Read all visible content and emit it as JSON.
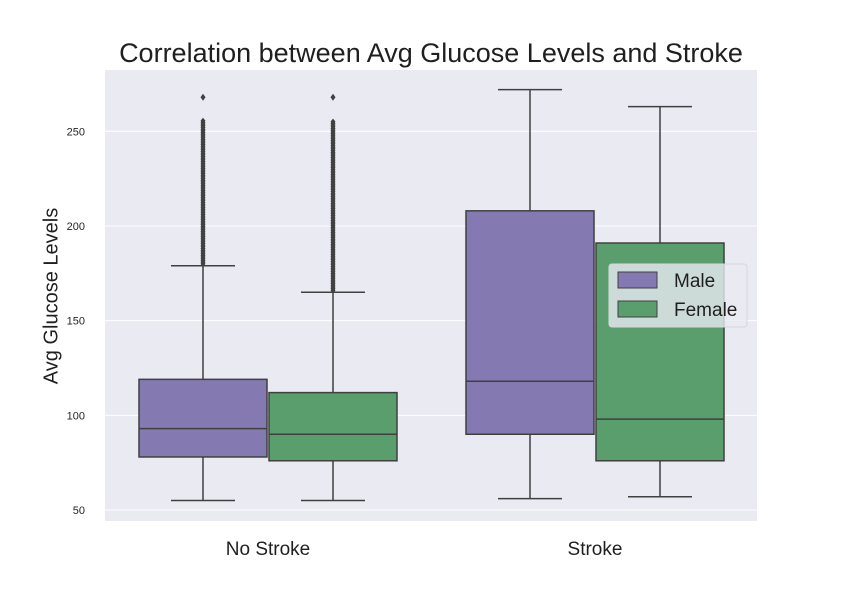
{
  "chart_data": {
    "type": "box",
    "title": "Correlation between Avg Glucose Levels and Stroke",
    "xlabel": "",
    "ylabel": "Avg Glucose Levels",
    "categories": [
      "No Stroke",
      "Stroke"
    ],
    "ylim": [
      45,
      277
    ],
    "yticks": [
      50,
      100,
      150,
      200,
      250
    ],
    "grid": true,
    "legend": {
      "placement": "center-right"
    },
    "series": [
      {
        "name": "Male",
        "color": "#8479b0",
        "boxes": [
          {
            "whisker_low": 55,
            "q1": 78,
            "median": 93,
            "q3": 119,
            "whisker_high": 179,
            "outliers_from": 180,
            "outliers_to": 268
          },
          {
            "whisker_low": 56,
            "q1": 90,
            "median": 118,
            "q3": 208,
            "whisker_high": 272
          }
        ]
      },
      {
        "name": "Female",
        "color": "#5a9e6e",
        "boxes": [
          {
            "whisker_low": 55,
            "q1": 76,
            "median": 90,
            "q3": 112,
            "whisker_high": 165,
            "outliers_from": 166,
            "outliers_to": 268
          },
          {
            "whisker_low": 57,
            "q1": 76,
            "median": 98,
            "q3": 191,
            "whisker_high": 263
          }
        ]
      }
    ]
  }
}
